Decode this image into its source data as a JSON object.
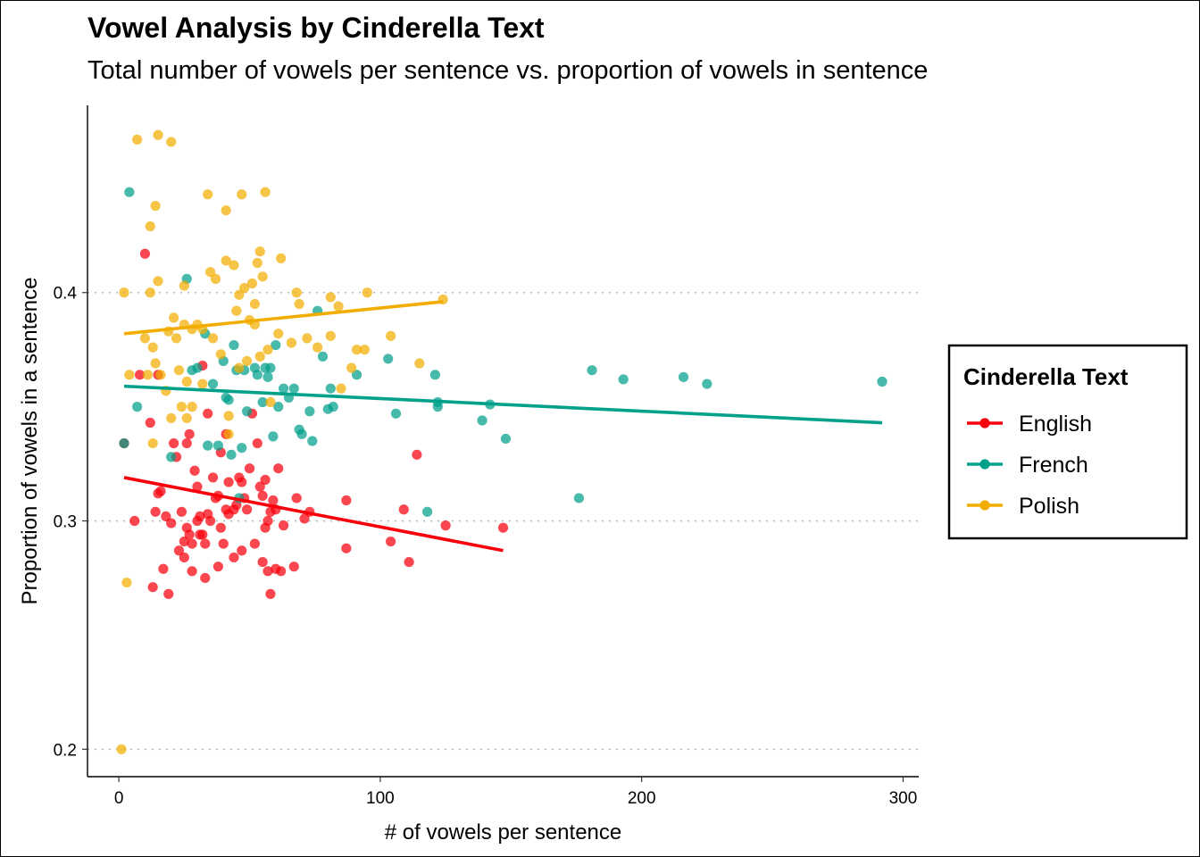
{
  "chart_data": {
    "type": "scatter",
    "title": "Vowel Analysis by Cinderella Text",
    "subtitle": "Total number of vowels per sentence vs. proportion of vowels in sentence",
    "xlabel": "# of vowels per sentence",
    "ylabel": "Proportion of vowels in a sentence",
    "xlim": [
      -12,
      306
    ],
    "ylim": [
      0.188,
      0.482
    ],
    "xticks": [
      0,
      100,
      200,
      300
    ],
    "xtick_labels": [
      "0",
      "100",
      "200",
      "300"
    ],
    "yticks": [
      0.2,
      0.3,
      0.4
    ],
    "ytick_labels": [
      "0.2",
      "0.3",
      "0.4"
    ],
    "grid": "horizontal dotted",
    "legend": {
      "title": "Cinderella Text",
      "position": "right"
    },
    "series": [
      {
        "name": "English",
        "color": "#f8000b",
        "trend": [
          [
            2,
            0.319
          ],
          [
            147,
            0.287
          ]
        ],
        "points": [
          [
            2,
            0.334
          ],
          [
            6,
            0.3
          ],
          [
            8,
            0.364
          ],
          [
            10,
            0.417
          ],
          [
            12,
            0.343
          ],
          [
            13,
            0.271
          ],
          [
            14,
            0.304
          ],
          [
            15,
            0.312
          ],
          [
            15,
            0.364
          ],
          [
            16,
            0.313
          ],
          [
            17,
            0.279
          ],
          [
            18,
            0.302
          ],
          [
            19,
            0.268
          ],
          [
            20,
            0.299
          ],
          [
            21,
            0.334
          ],
          [
            22,
            0.328
          ],
          [
            23,
            0.287
          ],
          [
            24,
            0.304
          ],
          [
            25,
            0.284
          ],
          [
            25,
            0.291
          ],
          [
            26,
            0.297
          ],
          [
            26,
            0.334
          ],
          [
            27,
            0.338
          ],
          [
            27,
            0.294
          ],
          [
            28,
            0.29
          ],
          [
            28,
            0.278
          ],
          [
            29,
            0.322
          ],
          [
            30,
            0.3
          ],
          [
            30,
            0.315
          ],
          [
            31,
            0.302
          ],
          [
            31,
            0.294
          ],
          [
            32,
            0.294
          ],
          [
            32,
            0.368
          ],
          [
            33,
            0.29
          ],
          [
            33,
            0.275
          ],
          [
            34,
            0.303
          ],
          [
            34,
            0.347
          ],
          [
            35,
            0.3
          ],
          [
            36,
            0.319
          ],
          [
            37,
            0.31
          ],
          [
            38,
            0.311
          ],
          [
            38,
            0.28
          ],
          [
            39,
            0.33
          ],
          [
            39,
            0.297
          ],
          [
            40,
            0.29
          ],
          [
            41,
            0.305
          ],
          [
            41,
            0.338
          ],
          [
            42,
            0.303
          ],
          [
            42,
            0.317
          ],
          [
            44,
            0.284
          ],
          [
            44,
            0.305
          ],
          [
            45,
            0.307
          ],
          [
            46,
            0.319
          ],
          [
            47,
            0.287
          ],
          [
            47,
            0.317
          ],
          [
            48,
            0.31
          ],
          [
            49,
            0.305
          ],
          [
            50,
            0.323
          ],
          [
            51,
            0.347
          ],
          [
            52,
            0.29
          ],
          [
            53,
            0.334
          ],
          [
            54,
            0.315
          ],
          [
            55,
            0.311
          ],
          [
            55,
            0.282
          ],
          [
            56,
            0.297
          ],
          [
            56,
            0.318
          ],
          [
            57,
            0.278
          ],
          [
            57,
            0.3
          ],
          [
            58,
            0.268
          ],
          [
            58,
            0.304
          ],
          [
            59,
            0.309
          ],
          [
            60,
            0.279
          ],
          [
            60,
            0.305
          ],
          [
            61,
            0.323
          ],
          [
            62,
            0.278
          ],
          [
            63,
            0.298
          ],
          [
            67,
            0.28
          ],
          [
            68,
            0.31
          ],
          [
            71,
            0.301
          ],
          [
            73,
            0.304
          ],
          [
            87,
            0.288
          ],
          [
            87,
            0.309
          ],
          [
            104,
            0.291
          ],
          [
            109,
            0.305
          ],
          [
            111,
            0.282
          ],
          [
            114,
            0.329
          ],
          [
            125,
            0.298
          ],
          [
            147,
            0.297
          ]
        ]
      },
      {
        "name": "French",
        "color": "#00a08a",
        "trend": [
          [
            2,
            0.359
          ],
          [
            292,
            0.343
          ]
        ],
        "points": [
          [
            2,
            0.334
          ],
          [
            4,
            0.444
          ],
          [
            7,
            0.35
          ],
          [
            20,
            0.328
          ],
          [
            26,
            0.406
          ],
          [
            28,
            0.366
          ],
          [
            30,
            0.367
          ],
          [
            33,
            0.382
          ],
          [
            34,
            0.333
          ],
          [
            36,
            0.36
          ],
          [
            38,
            0.333
          ],
          [
            40,
            0.37
          ],
          [
            41,
            0.354
          ],
          [
            42,
            0.353
          ],
          [
            43,
            0.329
          ],
          [
            44,
            0.377
          ],
          [
            45,
            0.366
          ],
          [
            46,
            0.31
          ],
          [
            47,
            0.332
          ],
          [
            48,
            0.366
          ],
          [
            49,
            0.348
          ],
          [
            52,
            0.367
          ],
          [
            53,
            0.364
          ],
          [
            55,
            0.352
          ],
          [
            56,
            0.367
          ],
          [
            57,
            0.363
          ],
          [
            58,
            0.367
          ],
          [
            59,
            0.337
          ],
          [
            60,
            0.377
          ],
          [
            61,
            0.35
          ],
          [
            63,
            0.358
          ],
          [
            65,
            0.354
          ],
          [
            67,
            0.358
          ],
          [
            69,
            0.34
          ],
          [
            70,
            0.338
          ],
          [
            73,
            0.348
          ],
          [
            74,
            0.335
          ],
          [
            76,
            0.392
          ],
          [
            78,
            0.372
          ],
          [
            80,
            0.349
          ],
          [
            81,
            0.358
          ],
          [
            82,
            0.35
          ],
          [
            91,
            0.364
          ],
          [
            103,
            0.371
          ],
          [
            106,
            0.347
          ],
          [
            118,
            0.304
          ],
          [
            121,
            0.364
          ],
          [
            122,
            0.35
          ],
          [
            122,
            0.352
          ],
          [
            139,
            0.344
          ],
          [
            142,
            0.351
          ],
          [
            148,
            0.336
          ],
          [
            176,
            0.31
          ],
          [
            181,
            0.366
          ],
          [
            193,
            0.362
          ],
          [
            216,
            0.363
          ],
          [
            225,
            0.36
          ],
          [
            292,
            0.361
          ]
        ]
      },
      {
        "name": "Polish",
        "color": "#f2ad00",
        "trend": [
          [
            2,
            0.382
          ],
          [
            124,
            0.396
          ]
        ],
        "points": [
          [
            1,
            0.2
          ],
          [
            2,
            0.4
          ],
          [
            3,
            0.273
          ],
          [
            4,
            0.364
          ],
          [
            7,
            0.467
          ],
          [
            10,
            0.38
          ],
          [
            11,
            0.364
          ],
          [
            12,
            0.429
          ],
          [
            12,
            0.4
          ],
          [
            13,
            0.334
          ],
          [
            13,
            0.376
          ],
          [
            14,
            0.438
          ],
          [
            14,
            0.369
          ],
          [
            15,
            0.469
          ],
          [
            15,
            0.405
          ],
          [
            16,
            0.364
          ],
          [
            18,
            0.357
          ],
          [
            19,
            0.383
          ],
          [
            20,
            0.466
          ],
          [
            20,
            0.345
          ],
          [
            21,
            0.389
          ],
          [
            22,
            0.38
          ],
          [
            23,
            0.366
          ],
          [
            24,
            0.35
          ],
          [
            25,
            0.403
          ],
          [
            25,
            0.386
          ],
          [
            26,
            0.345
          ],
          [
            26,
            0.361
          ],
          [
            28,
            0.384
          ],
          [
            28,
            0.35
          ],
          [
            30,
            0.386
          ],
          [
            32,
            0.36
          ],
          [
            32,
            0.384
          ],
          [
            34,
            0.443
          ],
          [
            35,
            0.409
          ],
          [
            36,
            0.38
          ],
          [
            37,
            0.406
          ],
          [
            39,
            0.373
          ],
          [
            41,
            0.436
          ],
          [
            41,
            0.414
          ],
          [
            42,
            0.346
          ],
          [
            42,
            0.338
          ],
          [
            44,
            0.412
          ],
          [
            45,
            0.392
          ],
          [
            46,
            0.399
          ],
          [
            46,
            0.367
          ],
          [
            47,
            0.443
          ],
          [
            48,
            0.402
          ],
          [
            49,
            0.37
          ],
          [
            50,
            0.388
          ],
          [
            51,
            0.404
          ],
          [
            52,
            0.395
          ],
          [
            52,
            0.386
          ],
          [
            53,
            0.413
          ],
          [
            54,
            0.418
          ],
          [
            54,
            0.372
          ],
          [
            55,
            0.407
          ],
          [
            56,
            0.444
          ],
          [
            57,
            0.375
          ],
          [
            58,
            0.352
          ],
          [
            61,
            0.382
          ],
          [
            62,
            0.415
          ],
          [
            66,
            0.378
          ],
          [
            68,
            0.4
          ],
          [
            69,
            0.395
          ],
          [
            72,
            0.38
          ],
          [
            76,
            0.376
          ],
          [
            81,
            0.381
          ],
          [
            81,
            0.398
          ],
          [
            84,
            0.394
          ],
          [
            85,
            0.358
          ],
          [
            89,
            0.367
          ],
          [
            91,
            0.375
          ],
          [
            94,
            0.375
          ],
          [
            95,
            0.4
          ],
          [
            104,
            0.381
          ],
          [
            115,
            0.369
          ],
          [
            124,
            0.397
          ]
        ]
      }
    ]
  }
}
